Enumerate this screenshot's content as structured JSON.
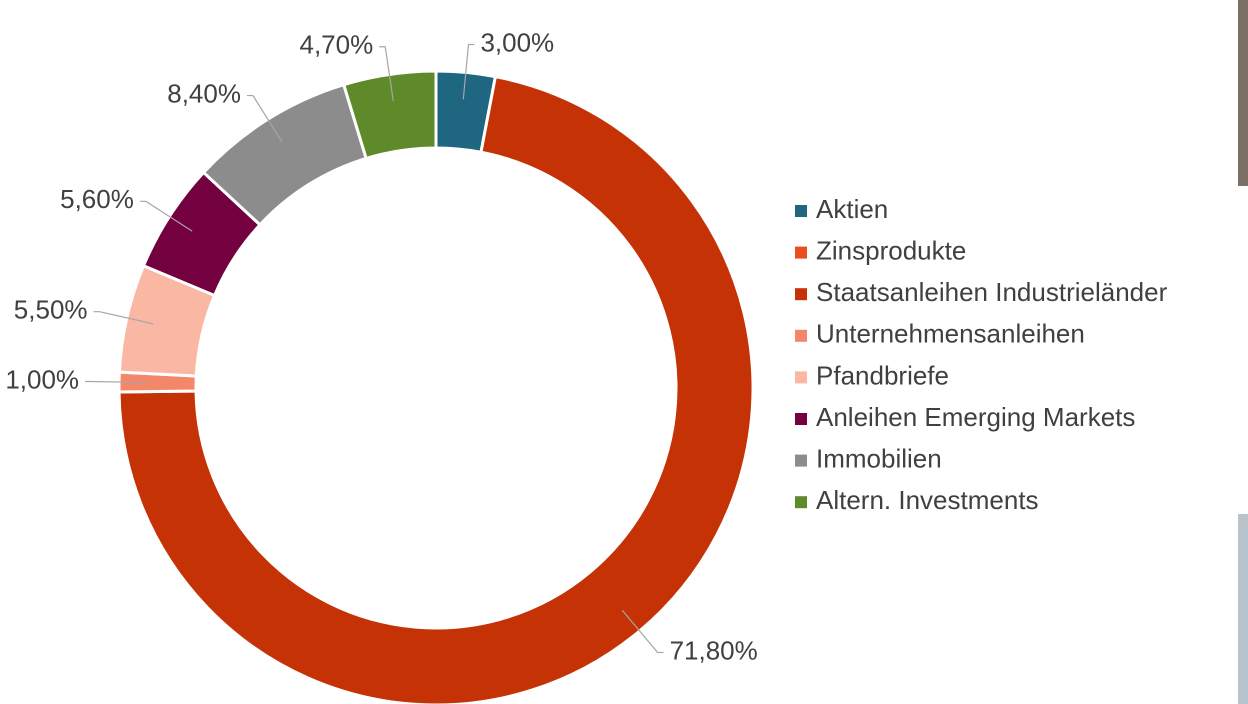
{
  "chart_data": {
    "type": "donut",
    "categories": [
      "Aktien",
      "Zinsprodukte",
      "Staatsanleihen Industrieländer",
      "Unternehmensanleihen",
      "Pfandbriefe",
      "Anleihen Emerging Markets",
      "Immobilien",
      "Altern. Investments"
    ],
    "values": [
      3.0,
      null,
      71.8,
      1.0,
      5.5,
      5.6,
      8.4,
      4.7
    ],
    "value_labels": [
      "3,00%",
      null,
      "71,80%",
      "1,00%",
      "5,50%",
      "5,60%",
      "8,40%",
      "4,70%"
    ],
    "colors": [
      "#1f6680",
      "#e8501e",
      "#c43206",
      "#f4876a",
      "#fab7a3",
      "#73003f",
      "#8c8c8c",
      "#5f8a2a"
    ],
    "legend": "right"
  }
}
